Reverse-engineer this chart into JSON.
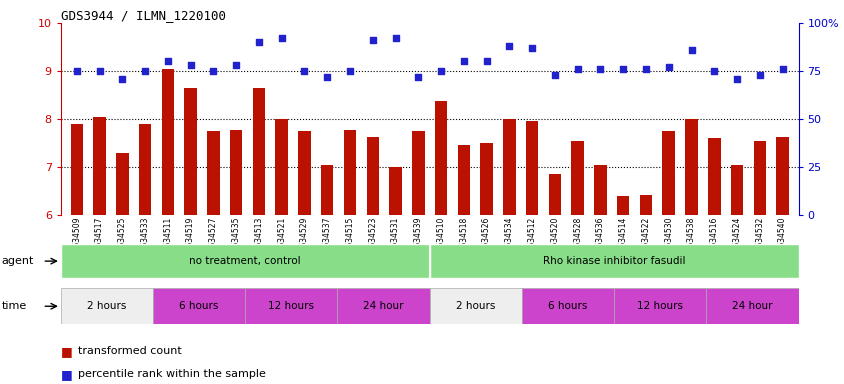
{
  "title": "GDS3944 / ILMN_1220100",
  "samples": [
    "GSM634509",
    "GSM634517",
    "GSM634525",
    "GSM634533",
    "GSM634511",
    "GSM634519",
    "GSM634527",
    "GSM634535",
    "GSM634513",
    "GSM634521",
    "GSM634529",
    "GSM634537",
    "GSM634515",
    "GSM634523",
    "GSM634531",
    "GSM634539",
    "GSM634510",
    "GSM634518",
    "GSM634526",
    "GSM634534",
    "GSM634512",
    "GSM634520",
    "GSM634528",
    "GSM634536",
    "GSM634514",
    "GSM634522",
    "GSM634530",
    "GSM634538",
    "GSM634516",
    "GSM634524",
    "GSM634532",
    "GSM634540"
  ],
  "bar_values": [
    7.9,
    8.05,
    7.3,
    7.9,
    9.05,
    8.65,
    7.75,
    7.78,
    8.65,
    8.0,
    7.75,
    7.05,
    7.78,
    7.62,
    7.0,
    7.75,
    8.38,
    7.45,
    7.5,
    8.0,
    7.95,
    6.85,
    7.55,
    7.05,
    6.4,
    6.42,
    7.75,
    8.0,
    7.6,
    7.05,
    7.55,
    7.62
  ],
  "dot_values_pct": [
    75,
    75,
    71,
    75,
    80,
    78,
    75,
    78,
    90,
    92,
    75,
    72,
    75,
    91,
    92,
    72,
    75,
    80,
    80,
    88,
    87,
    73,
    76,
    76,
    76,
    76,
    77,
    86,
    75,
    71,
    73,
    76
  ],
  "ylim_left": [
    6,
    10
  ],
  "ylim_right": [
    0,
    100
  ],
  "yticks_left": [
    6,
    7,
    8,
    9,
    10
  ],
  "yticks_right": [
    0,
    25,
    50,
    75,
    100
  ],
  "bar_color": "#bb1100",
  "dot_color": "#2222cc",
  "agent_groups": [
    {
      "label": "no treatment, control",
      "start": 0,
      "end": 16,
      "color": "#88dd88"
    },
    {
      "label": "Rho kinase inhibitor fasudil",
      "start": 16,
      "end": 32,
      "color": "#88dd88"
    }
  ],
  "time_groups": [
    {
      "label": "2 hours",
      "start": 0,
      "end": 4,
      "color": "#eeeeee"
    },
    {
      "label": "6 hours",
      "start": 4,
      "end": 8,
      "color": "#cc44cc"
    },
    {
      "label": "12 hours",
      "start": 8,
      "end": 12,
      "color": "#cc44cc"
    },
    {
      "label": "24 hour",
      "start": 12,
      "end": 16,
      "color": "#cc44cc"
    },
    {
      "label": "2 hours",
      "start": 16,
      "end": 20,
      "color": "#eeeeee"
    },
    {
      "label": "6 hours",
      "start": 20,
      "end": 24,
      "color": "#cc44cc"
    },
    {
      "label": "12 hours",
      "start": 24,
      "end": 28,
      "color": "#cc44cc"
    },
    {
      "label": "24 hour",
      "start": 28,
      "end": 32,
      "color": "#cc44cc"
    }
  ],
  "legend_bar_label": "transformed count",
  "legend_dot_label": "percentile rank within the sample",
  "label_agent": "agent",
  "label_time": "time",
  "fig_width": 8.45,
  "fig_height": 3.84,
  "dpi": 100
}
